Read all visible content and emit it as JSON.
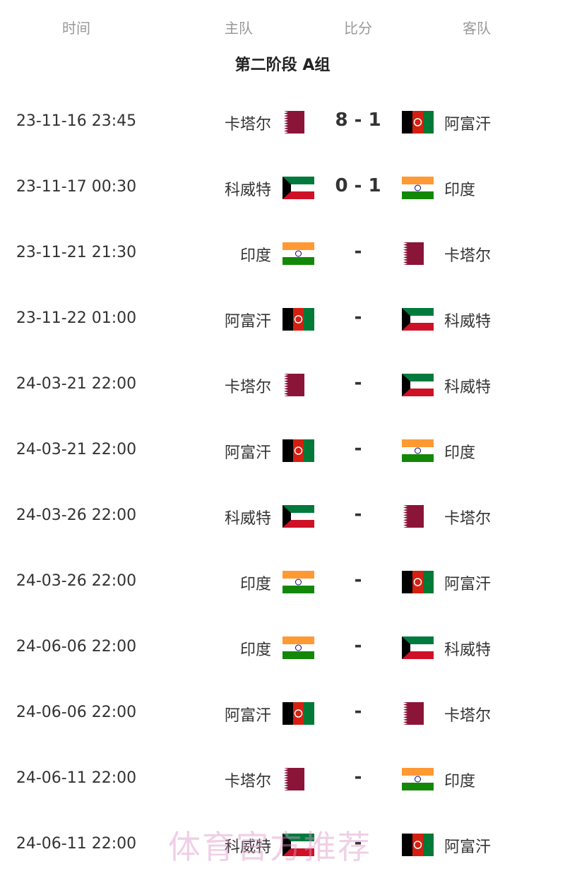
{
  "headers": {
    "time": "时间",
    "home": "主队",
    "score": "比分",
    "away": "客队"
  },
  "group_title": "第二阶段 A组",
  "flags": {
    "卡塔尔": "qatar-flag-icon",
    "阿富汗": "afghanistan-flag-icon",
    "科威特": "kuwait-flag-icon",
    "印度": "india-flag-icon"
  },
  "matches": [
    {
      "time": "23-11-16 23:45",
      "home": "卡塔尔",
      "score": "8 - 1",
      "away": "阿富汗"
    },
    {
      "time": "23-11-17 00:30",
      "home": "科威特",
      "score": "0 - 1",
      "away": "印度"
    },
    {
      "time": "23-11-21 21:30",
      "home": "印度",
      "score": "-",
      "away": "卡塔尔"
    },
    {
      "time": "23-11-22 01:00",
      "home": "阿富汗",
      "score": "-",
      "away": "科威特"
    },
    {
      "time": "24-03-21 22:00",
      "home": "卡塔尔",
      "score": "-",
      "away": "科威特"
    },
    {
      "time": "24-03-21 22:00",
      "home": "阿富汗",
      "score": "-",
      "away": "印度"
    },
    {
      "time": "24-03-26 22:00",
      "home": "科威特",
      "score": "-",
      "away": "卡塔尔"
    },
    {
      "time": "24-03-26 22:00",
      "home": "印度",
      "score": "-",
      "away": "阿富汗"
    },
    {
      "time": "24-06-06 22:00",
      "home": "印度",
      "score": "-",
      "away": "科威特"
    },
    {
      "time": "24-06-06 22:00",
      "home": "阿富汗",
      "score": "-",
      "away": "卡塔尔"
    },
    {
      "time": "24-06-11 22:00",
      "home": "卡塔尔",
      "score": "-",
      "away": "印度"
    },
    {
      "time": "24-06-11 22:00",
      "home": "科威特",
      "score": "-",
      "away": "阿富汗"
    }
  ],
  "watermark": "体育官方推荐"
}
